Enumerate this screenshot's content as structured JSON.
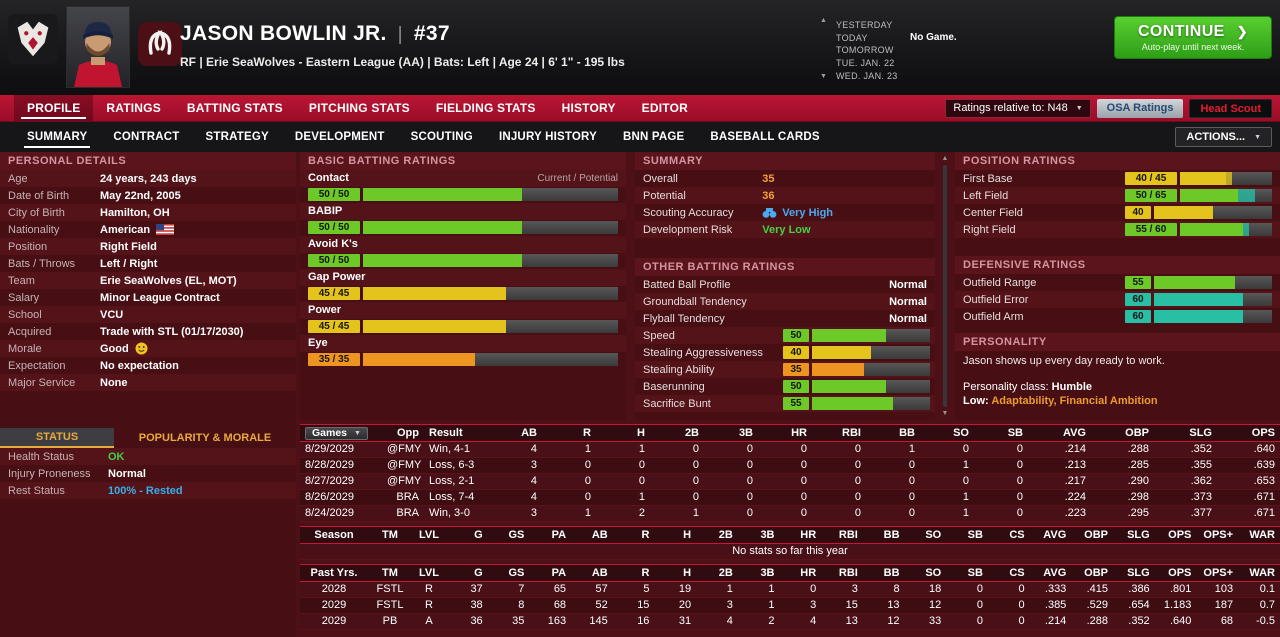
{
  "colors": {
    "green": "#6cc927",
    "yellow": "#e3c31c",
    "orange": "#ee9420",
    "teal": "#28bfa4",
    "value_orange": "#f0a13a",
    "value_green": "#44d148",
    "value_blue": "#4aa9f0",
    "value_cyan": "#35b0e8",
    "value_white": "#ffffff",
    "gold": "#e8aa3c"
  },
  "icons": {
    "dropdown": "▼",
    "chevron_up": "▲",
    "chevron_down": "▼",
    "continue_arrow": "❯"
  },
  "top": {
    "player_name": "JASON BOWLIN JR.",
    "name_number_sep": "|",
    "jersey_number": "#37",
    "info_line": "RF | Erie SeaWolves - Eastern League (AA) | Bats: Left | Age 24 | 6' 1\" - 195 lbs",
    "schedule": [
      {
        "label": "YESTERDAY",
        "note": ""
      },
      {
        "label": "TODAY",
        "note": "No Game."
      },
      {
        "label": "TOMORROW",
        "note": ""
      },
      {
        "label": "TUE. JAN. 22",
        "note": ""
      },
      {
        "label": "WED. JAN. 23",
        "note": ""
      }
    ],
    "continue_label": "CONTINUE",
    "continue_sub": "Auto-play until next week."
  },
  "main_nav": {
    "tabs": [
      {
        "label": "PROFILE",
        "active": true
      },
      {
        "label": "RATINGS",
        "active": false
      },
      {
        "label": "BATTING STATS",
        "active": false
      },
      {
        "label": "PITCHING STATS",
        "active": false
      },
      {
        "label": "FIELDING STATS",
        "active": false
      },
      {
        "label": "HISTORY",
        "active": false
      },
      {
        "label": "EDITOR",
        "active": false
      }
    ],
    "ratings_relative": "Ratings relative to: N48",
    "osa_button": "OSA Ratings",
    "head_scout_button": "Head Scout"
  },
  "sub_nav": {
    "tabs": [
      {
        "label": "SUMMARY",
        "active": true
      },
      {
        "label": "CONTRACT",
        "active": false
      },
      {
        "label": "STRATEGY",
        "active": false
      },
      {
        "label": "DEVELOPMENT",
        "active": false
      },
      {
        "label": "SCOUTING",
        "active": false
      },
      {
        "label": "INJURY HISTORY",
        "active": false
      },
      {
        "label": "BNN PAGE",
        "active": false
      },
      {
        "label": "BASEBALL CARDS",
        "active": false
      }
    ],
    "actions_button": "ACTIONS..."
  },
  "personal_details": {
    "title": "PERSONAL DETAILS",
    "rows": [
      {
        "label": "Age",
        "value": "24 years, 243 days"
      },
      {
        "label": "Date of Birth",
        "value": "May 22nd, 2005"
      },
      {
        "label": "City of Birth",
        "value": "Hamilton, OH"
      },
      {
        "label": "Nationality",
        "value": "American",
        "icon": "us-flag"
      },
      {
        "label": "Position",
        "value": "Right Field"
      },
      {
        "label": "Bats / Throws",
        "value": "Left / Right"
      },
      {
        "label": "Team",
        "value": "Erie SeaWolves (EL, MOT)"
      },
      {
        "label": "Salary",
        "value": "Minor League Contract"
      },
      {
        "label": "School",
        "value": "VCU"
      },
      {
        "label": "Acquired",
        "value": "Trade with STL (01/17/2030)"
      },
      {
        "label": "Morale",
        "value": "Good",
        "icon": "smiley"
      },
      {
        "label": "Expectation",
        "value": "No expectation"
      },
      {
        "label": "Major Service",
        "value": "None"
      }
    ]
  },
  "status_panel": {
    "tabs": [
      {
        "label": "STATUS"
      },
      {
        "label": "POPULARITY & MORALE"
      }
    ],
    "rows": [
      {
        "label": "Health Status",
        "value": "OK",
        "color": "value_green"
      },
      {
        "label": "Injury Proneness",
        "value": "Normal",
        "color": "value_white"
      },
      {
        "label": "Rest Status",
        "value": "100% - Rested",
        "color": "value_cyan"
      }
    ]
  },
  "basic_batting": {
    "title": "BASIC BATTING RATINGS",
    "scale_note": "Current / Potential",
    "ratings": [
      {
        "label": "Contact",
        "badge": "50 / 50",
        "current": 50,
        "potential": 50
      },
      {
        "label": "BABIP",
        "badge": "50 / 50",
        "current": 50,
        "potential": 50
      },
      {
        "label": "Avoid K's",
        "badge": "50 / 50",
        "current": 50,
        "potential": 50
      },
      {
        "label": "Gap Power",
        "badge": "45 / 45",
        "current": 45,
        "potential": 45
      },
      {
        "label": "Power",
        "badge": "45 / 45",
        "current": 45,
        "potential": 45
      },
      {
        "label": "Eye",
        "badge": "35 / 35",
        "current": 35,
        "potential": 35
      }
    ]
  },
  "summary_panel": {
    "title": "SUMMARY",
    "rows": [
      {
        "label": "Overall",
        "value": "35",
        "color": "value_orange",
        "icon": ""
      },
      {
        "label": "Potential",
        "value": "36",
        "color": "value_orange",
        "icon": ""
      },
      {
        "label": "Scouting Accuracy",
        "value": "Very High",
        "color": "value_blue",
        "icon": "binoculars"
      },
      {
        "label": "Development Risk",
        "value": "Very Low",
        "color": "value_green",
        "icon": ""
      }
    ]
  },
  "other_batting": {
    "title": "OTHER BATTING RATINGS",
    "text_rows": [
      {
        "label": "Batted Ball Profile",
        "value": "Normal"
      },
      {
        "label": "Groundball Tendency",
        "value": "Normal"
      },
      {
        "label": "Flyball Tendency",
        "value": "Normal"
      }
    ],
    "ratings": [
      {
        "label": "Speed",
        "badge": "50",
        "current": 50,
        "potential": 50
      },
      {
        "label": "Stealing Aggressiveness",
        "badge": "40",
        "current": 40,
        "potential": 40
      },
      {
        "label": "Stealing Ability",
        "badge": "35",
        "current": 35,
        "potential": 35
      },
      {
        "label": "Baserunning",
        "badge": "50",
        "current": 50,
        "potential": 50
      },
      {
        "label": "Sacrifice Bunt",
        "badge": "55",
        "current": 55,
        "potential": 55
      }
    ]
  },
  "position_ratings": {
    "title": "POSITION RATINGS",
    "ratings": [
      {
        "label": "First Base",
        "badge": "40 / 45",
        "current": 40,
        "potential": 45
      },
      {
        "label": "Left Field",
        "badge": "50 / 65",
        "current": 50,
        "potential": 65
      },
      {
        "label": "Center Field",
        "badge": "40",
        "current": 40,
        "potential": 40
      },
      {
        "label": "Right Field",
        "badge": "55 / 60",
        "current": 55,
        "potential": 60
      }
    ]
  },
  "defensive_ratings": {
    "title": "DEFENSIVE RATINGS",
    "ratings": [
      {
        "label": "Outfield Range",
        "badge": "55",
        "current": 55,
        "potential": 55
      },
      {
        "label": "Outfield Error",
        "badge": "60",
        "current": 60,
        "potential": 60
      },
      {
        "label": "Outfield Arm",
        "badge": "60",
        "current": 60,
        "potential": 60
      }
    ]
  },
  "personality": {
    "title": "PERSONALITY",
    "description": "Jason shows up every day ready to work.",
    "class_label": "Personality class:",
    "class_value": "Humble",
    "low_label": "Low:",
    "low_traits": "Adaptability, Financial Ambition"
  },
  "game_log": {
    "headers": [
      "Games",
      "Opp",
      "Result",
      "AB",
      "R",
      "H",
      "2B",
      "3B",
      "HR",
      "RBI",
      "BB",
      "SO",
      "SB",
      "AVG",
      "OBP",
      "SLG",
      "OPS"
    ],
    "rows": [
      [
        "8/29/2029",
        "@FMY",
        "Win, 4-1",
        "4",
        "1",
        "1",
        "0",
        "0",
        "0",
        "0",
        "1",
        "0",
        "0",
        ".214",
        ".288",
        ".352",
        ".640"
      ],
      [
        "8/28/2029",
        "@FMY",
        "Loss, 6-3",
        "3",
        "0",
        "0",
        "0",
        "0",
        "0",
        "0",
        "0",
        "1",
        "0",
        ".213",
        ".285",
        ".355",
        ".639"
      ],
      [
        "8/27/2029",
        "@FMY",
        "Loss, 2-1",
        "4",
        "0",
        "0",
        "0",
        "0",
        "0",
        "0",
        "0",
        "0",
        "0",
        ".217",
        ".290",
        ".362",
        ".653"
      ],
      [
        "8/26/2029",
        "BRA",
        "Loss, 7-4",
        "4",
        "0",
        "1",
        "0",
        "0",
        "0",
        "0",
        "0",
        "1",
        "0",
        ".224",
        ".298",
        ".373",
        ".671"
      ],
      [
        "8/24/2029",
        "BRA",
        "Win, 3-0",
        "3",
        "1",
        "2",
        "1",
        "0",
        "0",
        "0",
        "0",
        "1",
        "0",
        ".223",
        ".295",
        ".377",
        ".671"
      ]
    ]
  },
  "season_table": {
    "headers": [
      "Season",
      "TM",
      "LVL",
      "G",
      "GS",
      "PA",
      "AB",
      "R",
      "H",
      "2B",
      "3B",
      "HR",
      "RBI",
      "BB",
      "SO",
      "SB",
      "CS",
      "AVG",
      "OBP",
      "SLG",
      "OPS",
      "OPS+",
      "WAR"
    ],
    "empty_text": "No stats so far this year"
  },
  "past_years_table": {
    "headers": [
      "Past Yrs.",
      "TM",
      "LVL",
      "G",
      "GS",
      "PA",
      "AB",
      "R",
      "H",
      "2B",
      "3B",
      "HR",
      "RBI",
      "BB",
      "SO",
      "SB",
      "CS",
      "AVG",
      "OBP",
      "SLG",
      "OPS",
      "OPS+",
      "WAR"
    ],
    "rows": [
      [
        "2028",
        "FSTL",
        "R",
        "37",
        "7",
        "65",
        "57",
        "5",
        "19",
        "1",
        "1",
        "0",
        "3",
        "8",
        "18",
        "0",
        "0",
        ".333",
        ".415",
        ".386",
        ".801",
        "103",
        "0.1"
      ],
      [
        "2029",
        "FSTL",
        "R",
        "38",
        "8",
        "68",
        "52",
        "15",
        "20",
        "3",
        "1",
        "3",
        "15",
        "13",
        "12",
        "0",
        "0",
        ".385",
        ".529",
        ".654",
        "1.183",
        "187",
        "0.7"
      ],
      [
        "2029",
        "PB",
        "A",
        "36",
        "35",
        "163",
        "145",
        "16",
        "31",
        "4",
        "2",
        "4",
        "13",
        "12",
        "33",
        "0",
        "0",
        ".214",
        ".288",
        ".352",
        ".640",
        "68",
        "-0.5"
      ]
    ]
  }
}
